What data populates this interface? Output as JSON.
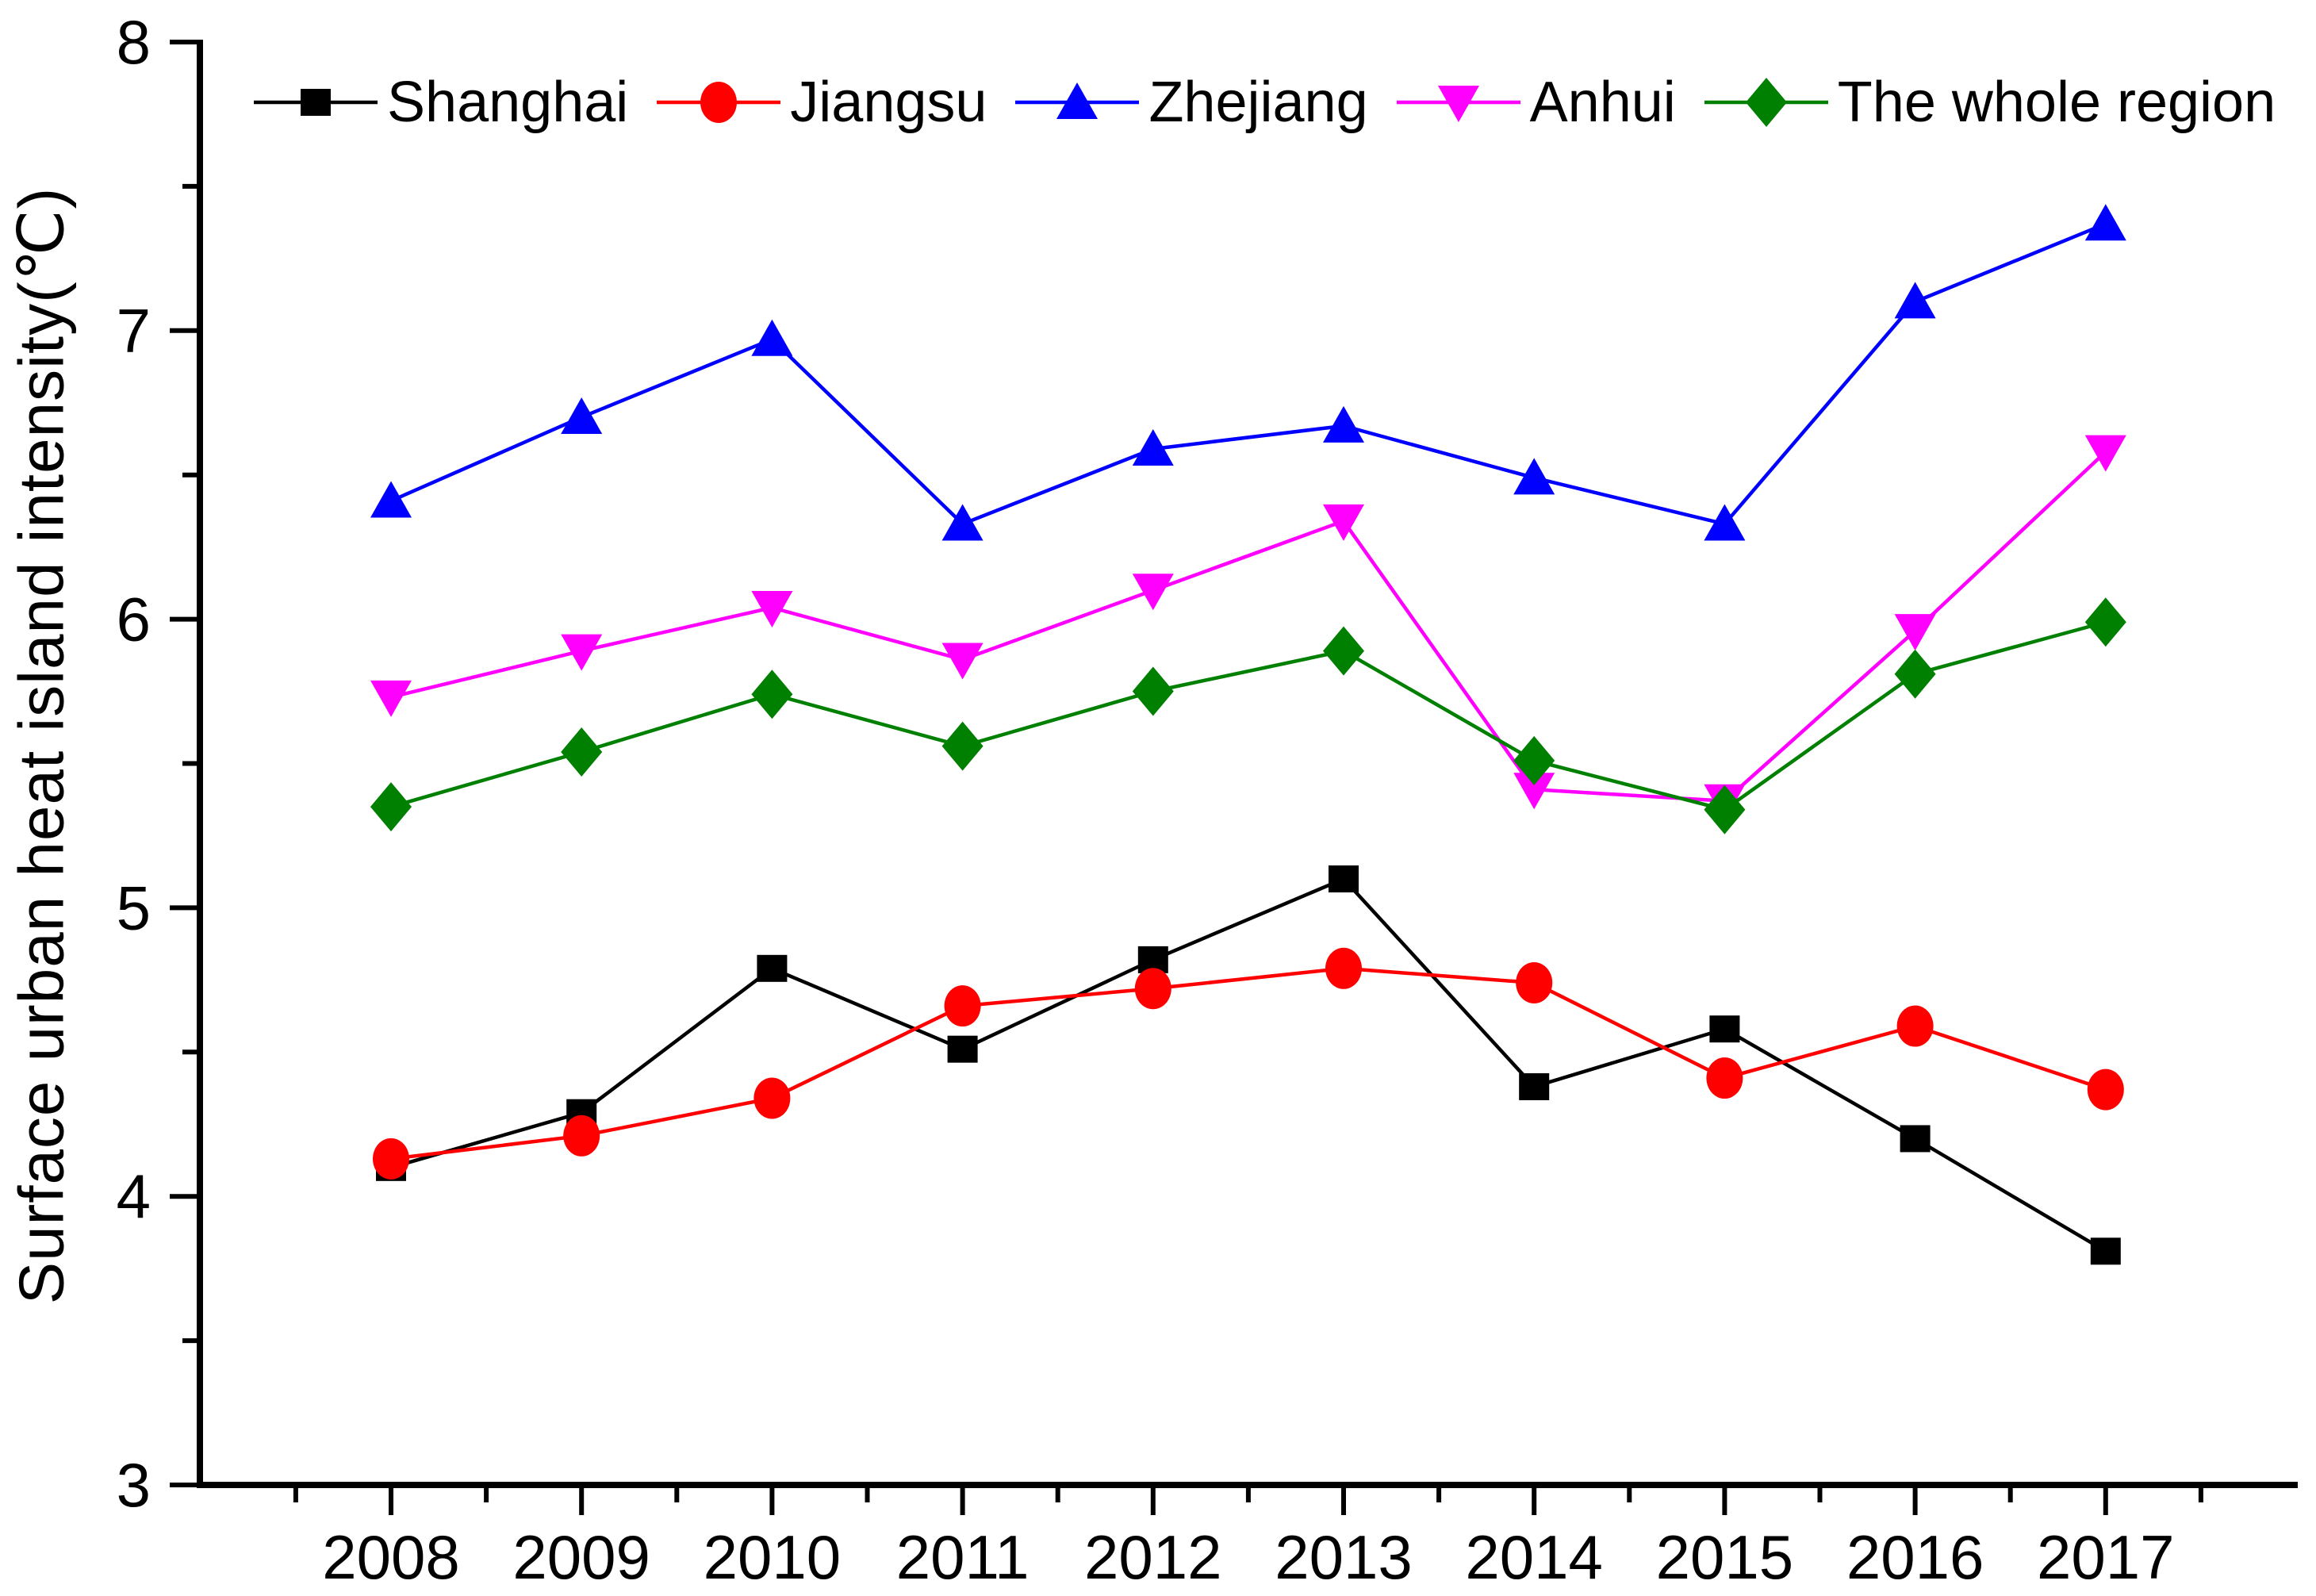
{
  "figure": {
    "background": "#ffffff",
    "text_color": "#000000"
  },
  "y_axis": {
    "title": "Surface urban heat island intensity(℃)",
    "min": 3,
    "max": 8,
    "major_ticks": [
      8,
      7,
      6,
      5,
      4,
      3
    ],
    "minor_ticks": [
      7.5,
      6.5,
      5.5,
      4.5,
      3.5
    ]
  },
  "x_axis": {
    "major_ticks": [
      2008,
      2009,
      2010,
      2011,
      2012,
      2013,
      2014,
      2015,
      2016,
      2017
    ],
    "minor_ticks": [
      2007.5,
      2008.5,
      2009.5,
      2010.5,
      2011.5,
      2012.5,
      2013.5,
      2014.5,
      2015.5,
      2016.5,
      2017.5
    ]
  },
  "chart_data": {
    "type": "line",
    "title": "",
    "xlabel": "",
    "ylabel": "Surface urban heat island intensity(℃)",
    "ylim": [
      3,
      8
    ],
    "xlim": [
      2007,
      2018
    ],
    "grid": false,
    "legend_position": "top",
    "x": [
      2008,
      2009,
      2010,
      2011,
      2012,
      2013,
      2014,
      2015,
      2016,
      2017
    ],
    "series": [
      {
        "name": "Shanghai",
        "color": "#000000",
        "marker": "square",
        "values": [
          4.1,
          4.29,
          4.79,
          4.51,
          4.82,
          5.1,
          4.38,
          4.58,
          4.2,
          3.81
        ]
      },
      {
        "name": "Jiangsu",
        "color": "#FF0000",
        "marker": "circle",
        "values": [
          4.13,
          4.21,
          4.34,
          4.66,
          4.72,
          4.79,
          4.74,
          4.41,
          4.59,
          4.37
        ]
      },
      {
        "name": "Zhejiang",
        "color": "#0000FF",
        "marker": "triangle-up",
        "values": [
          6.41,
          6.7,
          6.97,
          6.33,
          6.59,
          6.67,
          6.49,
          6.33,
          7.1,
          7.37
        ]
      },
      {
        "name": "Anhui",
        "color": "#FF00FF",
        "marker": "triangle-down",
        "values": [
          5.73,
          5.89,
          6.04,
          5.86,
          6.1,
          6.34,
          5.41,
          5.37,
          5.96,
          6.58
        ]
      },
      {
        "name": "The whole region",
        "color": "#008000",
        "marker": "diamond",
        "values": [
          5.35,
          5.54,
          5.74,
          5.56,
          5.75,
          5.89,
          5.51,
          5.34,
          5.81,
          5.99
        ]
      }
    ]
  }
}
